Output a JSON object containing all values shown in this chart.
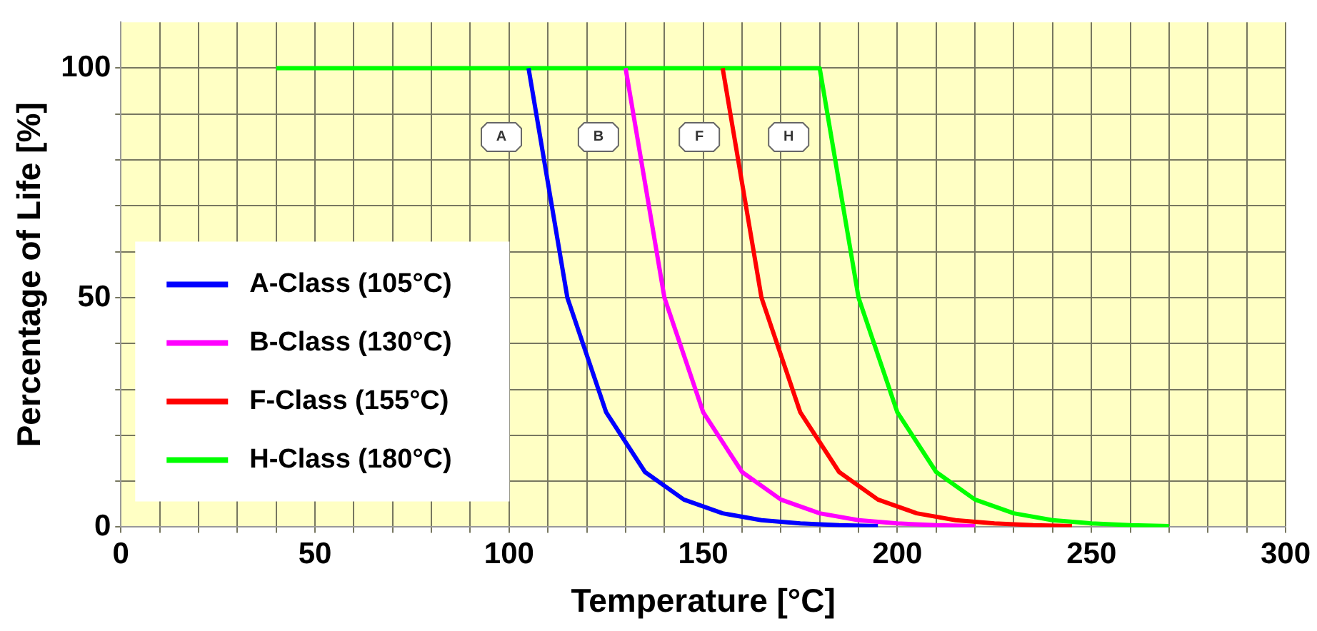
{
  "chart_data": {
    "type": "line",
    "xlabel": "Temperature [°C]",
    "ylabel": "Percentage of Life [%]",
    "xlim": [
      0,
      300
    ],
    "xticks": [
      0,
      {
        "value": 10,
        "label": null
      },
      {
        "value": 20,
        "label": null
      },
      {
        "value": 30,
        "label": null
      },
      {
        "value": 40,
        "label": null
      },
      50,
      {
        "value": 60,
        "label": null
      },
      {
        "value": 70,
        "label": null
      },
      {
        "value": 80,
        "label": null
      },
      {
        "value": 90,
        "label": null
      },
      100,
      {
        "value": 110,
        "label": null
      },
      {
        "value": 120,
        "label": null
      },
      {
        "value": 130,
        "label": null
      },
      {
        "value": 140,
        "label": null
      },
      150,
      {
        "value": 160,
        "label": null
      },
      {
        "value": 170,
        "label": null
      },
      {
        "value": 180,
        "label": null
      },
      {
        "value": 190,
        "label": null
      },
      200,
      {
        "value": 210,
        "label": null
      },
      {
        "value": 220,
        "label": null
      },
      {
        "value": 230,
        "label": null
      },
      {
        "value": 240,
        "label": null
      },
      250,
      {
        "value": 260,
        "label": null
      },
      {
        "value": 270,
        "label": null
      },
      {
        "value": 280,
        "label": null
      },
      {
        "value": 290,
        "label": null
      },
      300
    ],
    "ylim": [
      0,
      110
    ],
    "yticks": [
      0,
      {
        "value": 10,
        "label": null
      },
      {
        "value": 20,
        "label": null
      },
      {
        "value": 30,
        "label": null
      },
      {
        "value": 40,
        "label": null
      },
      50,
      {
        "value": 60,
        "label": null
      },
      {
        "value": 70,
        "label": null
      },
      {
        "value": 80,
        "label": null
      },
      {
        "value": 90,
        "label": null
      },
      100
    ],
    "grid": true,
    "legend": "bottom left",
    "marker": "none",
    "line_style": "solid",
    "series": [
      {
        "name": "A-Class (105°C)",
        "color": "#0000ff",
        "x": [
          105,
          115,
          125,
          135,
          145,
          155,
          165,
          175,
          185,
          195
        ],
        "values": [
          100,
          50,
          25,
          12,
          6,
          3,
          1.5,
          0.8,
          0.4,
          0.2
        ]
      },
      {
        "name": "B-Class (130°C)",
        "color": "#ff00ff",
        "x": [
          130,
          140,
          150,
          160,
          170,
          180,
          190,
          200,
          210,
          220
        ],
        "values": [
          100,
          50,
          25,
          12,
          6,
          3,
          1.5,
          0.8,
          0.4,
          0.2
        ]
      },
      {
        "name": "F-Class (155°C)",
        "color": "#ff0000",
        "x": [
          155,
          165,
          175,
          185,
          195,
          205,
          215,
          225,
          235,
          245
        ],
        "values": [
          100,
          50,
          25,
          12,
          6,
          3,
          1.5,
          0.8,
          0.4,
          0.2
        ]
      },
      {
        "name": "H-Class (180°C)",
        "color": "#00ff00",
        "x": [
          40,
          180,
          190,
          200,
          210,
          220,
          230,
          240,
          250,
          260,
          270
        ],
        "values": [
          100,
          100,
          50,
          25,
          12,
          6,
          3,
          1.5,
          0.8,
          0.4,
          0.2
        ]
      }
    ],
    "annotations": [
      {
        "text": "A",
        "x": 98,
        "y": 85
      },
      {
        "text": "B",
        "x": 123,
        "y": 85
      },
      {
        "text": "F",
        "x": 149,
        "y": 85
      },
      {
        "text": "H",
        "x": 172,
        "y": 85
      }
    ]
  }
}
